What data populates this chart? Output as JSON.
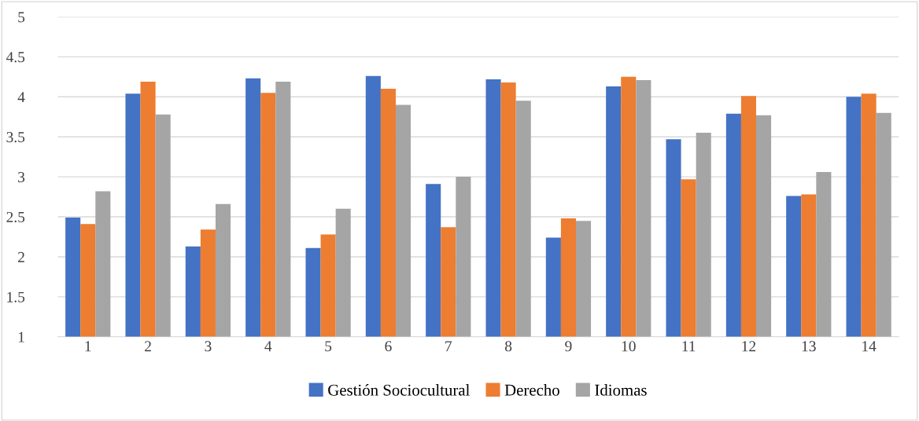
{
  "chart_data": {
    "type": "bar",
    "categories": [
      "1",
      "2",
      "3",
      "4",
      "5",
      "6",
      "7",
      "8",
      "9",
      "10",
      "11",
      "12",
      "13",
      "14"
    ],
    "series": [
      {
        "name": "Gestión Sociocultural",
        "color": "#4472c4",
        "values": [
          2.49,
          4.04,
          2.13,
          4.23,
          2.11,
          4.26,
          2.91,
          4.22,
          2.24,
          4.13,
          3.47,
          3.79,
          2.76,
          4.0
        ]
      },
      {
        "name": "Derecho",
        "color": "#ed7d31",
        "values": [
          2.41,
          4.19,
          2.34,
          4.05,
          2.28,
          4.1,
          2.37,
          4.18,
          2.48,
          4.25,
          2.97,
          4.01,
          2.78,
          4.04
        ]
      },
      {
        "name": "Idiomas",
        "color": "#a5a5a5",
        "values": [
          2.82,
          3.78,
          2.66,
          4.19,
          2.6,
          3.9,
          3.0,
          3.95,
          2.45,
          4.21,
          3.55,
          3.77,
          3.06,
          3.8
        ]
      }
    ],
    "ylim": [
      1,
      5
    ],
    "yticks": [
      1,
      1.5,
      2,
      2.5,
      3,
      3.5,
      4,
      4.5,
      5
    ],
    "grid": "y",
    "legend": "bottom"
  }
}
